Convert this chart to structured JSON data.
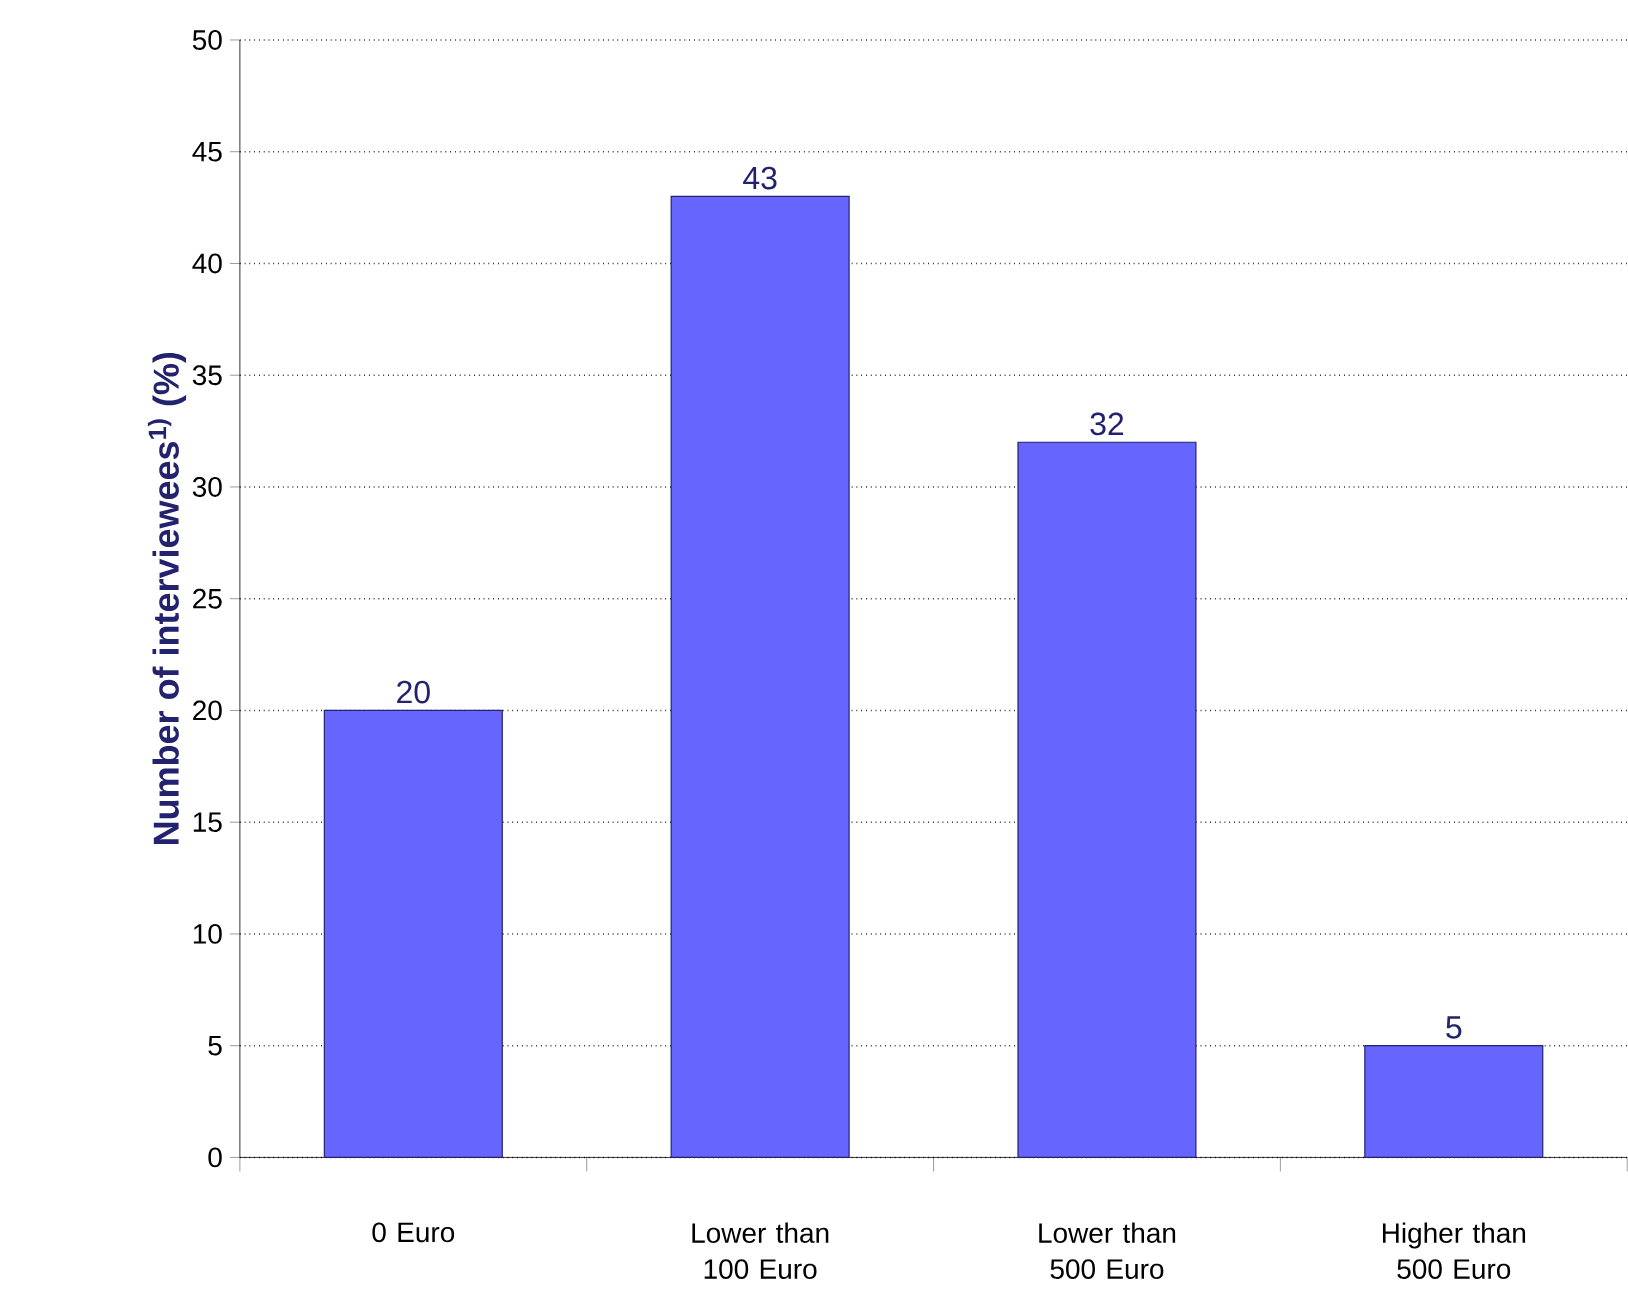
{
  "chart_data": {
    "type": "bar",
    "ylabel": "Number of interviewees$^{1)}$ (%)",
    "categories": [
      "0 Euro",
      "Lower than 100 Euro",
      "Lower than 500 Euro",
      "Higher than 500 Euro"
    ],
    "values": [
      20,
      43,
      32,
      5
    ],
    "color": "#6666ff",
    "data_labels": true,
    "grid": "y",
    "ylim": [
      0,
      50
    ],
    "yticks": [
      0,
      5,
      10,
      15,
      20,
      25,
      30,
      35,
      40,
      45,
      50
    ]
  }
}
